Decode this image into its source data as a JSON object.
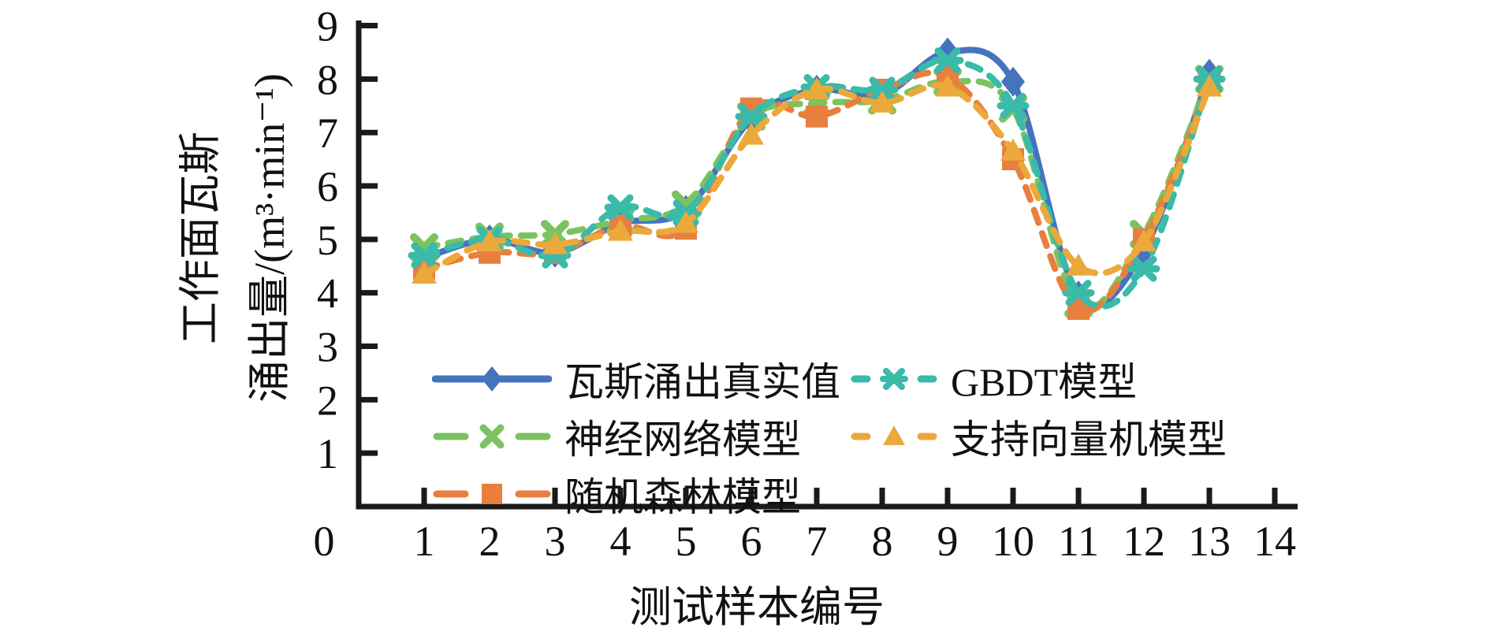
{
  "chart_data": {
    "type": "line",
    "title": "",
    "xlabel": "测试样本编号",
    "ylabel_line1": "工作面瓦斯",
    "ylabel_line2": "涌出量/(m³·min⁻¹)",
    "xlim": [
      0,
      14
    ],
    "ylim": [
      0,
      9
    ],
    "x_ticks": [
      0,
      1,
      2,
      3,
      4,
      5,
      6,
      7,
      8,
      9,
      10,
      11,
      12,
      13,
      14
    ],
    "y_ticks": [
      1,
      2,
      3,
      4,
      5,
      6,
      7,
      8,
      9
    ],
    "grid": false,
    "legend_position": "lower-left-inside-two-columns",
    "axis_color": "#1a1a1a",
    "x": [
      1,
      2,
      3,
      4,
      5,
      6,
      7,
      8,
      9,
      10,
      11,
      12,
      13
    ],
    "series": [
      {
        "name": "瓦斯涌出真实值",
        "color": "#4573BE",
        "marker": "diamond",
        "line": "solid",
        "values": [
          4.65,
          5.0,
          4.75,
          5.3,
          5.55,
          7.25,
          7.8,
          7.7,
          8.5,
          7.95,
          3.95,
          4.8,
          8.1
        ]
      },
      {
        "name": "神经网络模型",
        "color": "#7CC261",
        "marker": "x",
        "line": "dashed",
        "values": [
          4.85,
          5.05,
          5.1,
          5.35,
          5.65,
          7.3,
          7.55,
          7.6,
          7.95,
          7.45,
          3.8,
          5.1,
          8.0
        ]
      },
      {
        "name": "随机森林模型",
        "color": "#E87F3F",
        "marker": "square",
        "line": "dashed",
        "values": [
          4.45,
          4.75,
          4.75,
          5.25,
          5.2,
          7.45,
          7.3,
          7.8,
          8.05,
          6.5,
          3.7,
          5.0,
          7.9
        ]
      },
      {
        "name": "GBDT模型",
        "color": "#3ABAA9",
        "marker": "asterisk",
        "line": "dashed",
        "values": [
          4.7,
          5.0,
          4.7,
          5.6,
          5.5,
          7.3,
          7.85,
          7.8,
          8.35,
          7.5,
          4.0,
          4.45,
          8.0
        ]
      },
      {
        "name": "支持向量机模型",
        "color": "#EBA93C",
        "marker": "triangle",
        "line": "dashed",
        "values": [
          4.35,
          4.95,
          4.9,
          5.15,
          5.3,
          6.95,
          7.8,
          7.55,
          7.85,
          6.65,
          4.5,
          4.95,
          7.85
        ]
      }
    ],
    "legend_columns": [
      [
        0,
        1,
        2
      ],
      [
        3,
        4
      ]
    ]
  }
}
